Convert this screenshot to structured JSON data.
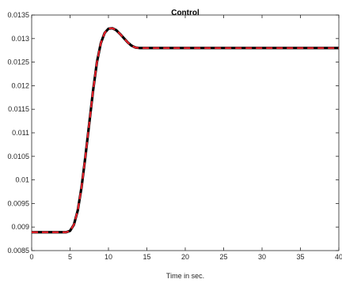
{
  "chart_data": {
    "type": "line",
    "title": "Control",
    "xlabel": "Time in sec.",
    "ylabel": "",
    "xlim": [
      0,
      40
    ],
    "ylim": [
      0.0085,
      0.0135
    ],
    "grid": false,
    "x_ticks": [
      "0",
      "5",
      "10",
      "15",
      "20",
      "25",
      "30",
      "35",
      "40"
    ],
    "y_ticks": [
      "0.0085",
      "0.009",
      "0.0095",
      "0.01",
      "0.0105",
      "0.011",
      "0.0115",
      "0.012",
      "0.0125",
      "0.013",
      "0.0135"
    ],
    "series": [
      {
        "style": "solid",
        "color": "#000000",
        "x": [
          0,
          4.5,
          5.0,
          5.5,
          6,
          6.5,
          7,
          7.5,
          8,
          8.5,
          9,
          9.5,
          10,
          10.5,
          11,
          11.5,
          12,
          12.5,
          13,
          13.5,
          14,
          15,
          40
        ],
        "y": [
          0.00889,
          0.00889,
          0.00892,
          0.00905,
          0.00935,
          0.00985,
          0.0105,
          0.0112,
          0.0119,
          0.0125,
          0.0129,
          0.01312,
          0.01321,
          0.01322,
          0.01318,
          0.0131,
          0.01301,
          0.01292,
          0.01285,
          0.01281,
          0.0128,
          0.0128,
          0.0128
        ]
      },
      {
        "style": "dashed",
        "color": "#e8202a",
        "x": [
          0,
          4.5,
          5.0,
          5.5,
          6,
          6.5,
          7,
          7.5,
          8,
          8.5,
          9,
          9.5,
          10,
          10.5,
          11,
          11.5,
          12,
          12.5,
          13,
          13.5,
          14,
          15,
          40
        ],
        "y": [
          0.00889,
          0.00889,
          0.00892,
          0.00905,
          0.00935,
          0.00985,
          0.0105,
          0.0112,
          0.0119,
          0.0125,
          0.0129,
          0.01312,
          0.01321,
          0.01322,
          0.01318,
          0.0131,
          0.01301,
          0.01292,
          0.01285,
          0.01281,
          0.0128,
          0.0128,
          0.0128
        ]
      }
    ]
  }
}
